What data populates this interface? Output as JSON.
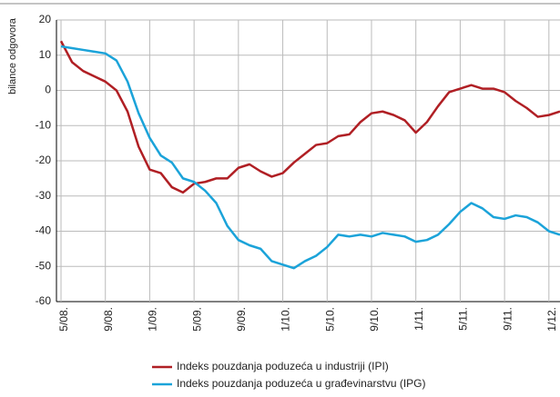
{
  "chart_data": {
    "type": "line",
    "y_label": "bilance odgovora",
    "categories": [
      "5/08.",
      null,
      null,
      null,
      "9/08.",
      null,
      null,
      null,
      "1/09.",
      null,
      null,
      null,
      "5/09.",
      null,
      null,
      null,
      "9/09.",
      null,
      null,
      null,
      "1/10.",
      null,
      null,
      null,
      "5/10.",
      null,
      null,
      null,
      "9/10.",
      null,
      null,
      null,
      "1/11.",
      null,
      null,
      null,
      "5/11.",
      null,
      null,
      null,
      "9/11.",
      null,
      null,
      null,
      "1/12.",
      null
    ],
    "series": [
      {
        "name": "Indeks pouzdanja poduzeća u industriji (IPI)",
        "color": "#b01f24",
        "values": [
          14,
          8,
          5.5,
          4,
          2.5,
          0,
          -6,
          -16,
          -22.5,
          -23.5,
          -27.5,
          -29,
          -26.5,
          -26,
          -25,
          -25,
          -22,
          -21,
          -23,
          -24.5,
          -23.5,
          -20.5,
          -18,
          -15.5,
          -15,
          -13,
          -12.5,
          -9,
          -6.5,
          -6,
          -7,
          -8.5,
          -12,
          -9,
          -4.5,
          -0.5,
          0.5,
          1.5,
          0.5,
          0.5,
          -0.5,
          -3,
          -5,
          -7.5,
          -7,
          -6
        ]
      },
      {
        "name": "Indeks pouzdanja poduzeća u građevinarstvu (IPG)",
        "color": "#1ba3d9",
        "values": [
          12.5,
          12,
          11.5,
          11,
          10.5,
          8.5,
          2.5,
          -6.5,
          -13.5,
          -18.5,
          -20.5,
          -25,
          -26,
          -28.5,
          -32,
          -38.5,
          -42.5,
          -44,
          -45,
          -48.5,
          -49.5,
          -50.5,
          -48.5,
          -47,
          -44.5,
          -41,
          -41.5,
          -41,
          -41.5,
          -40.5,
          -41,
          -41.5,
          -43,
          -42.5,
          -41,
          -38,
          -34.5,
          -32,
          -33.5,
          -36,
          -36.5,
          -35.5,
          -36,
          -37.5,
          -40,
          -41
        ]
      }
    ],
    "ylim": [
      -60,
      20
    ],
    "yticks": [
      -60,
      -50,
      -40,
      -30,
      -20,
      -10,
      0,
      10,
      20
    ],
    "grid": true
  }
}
